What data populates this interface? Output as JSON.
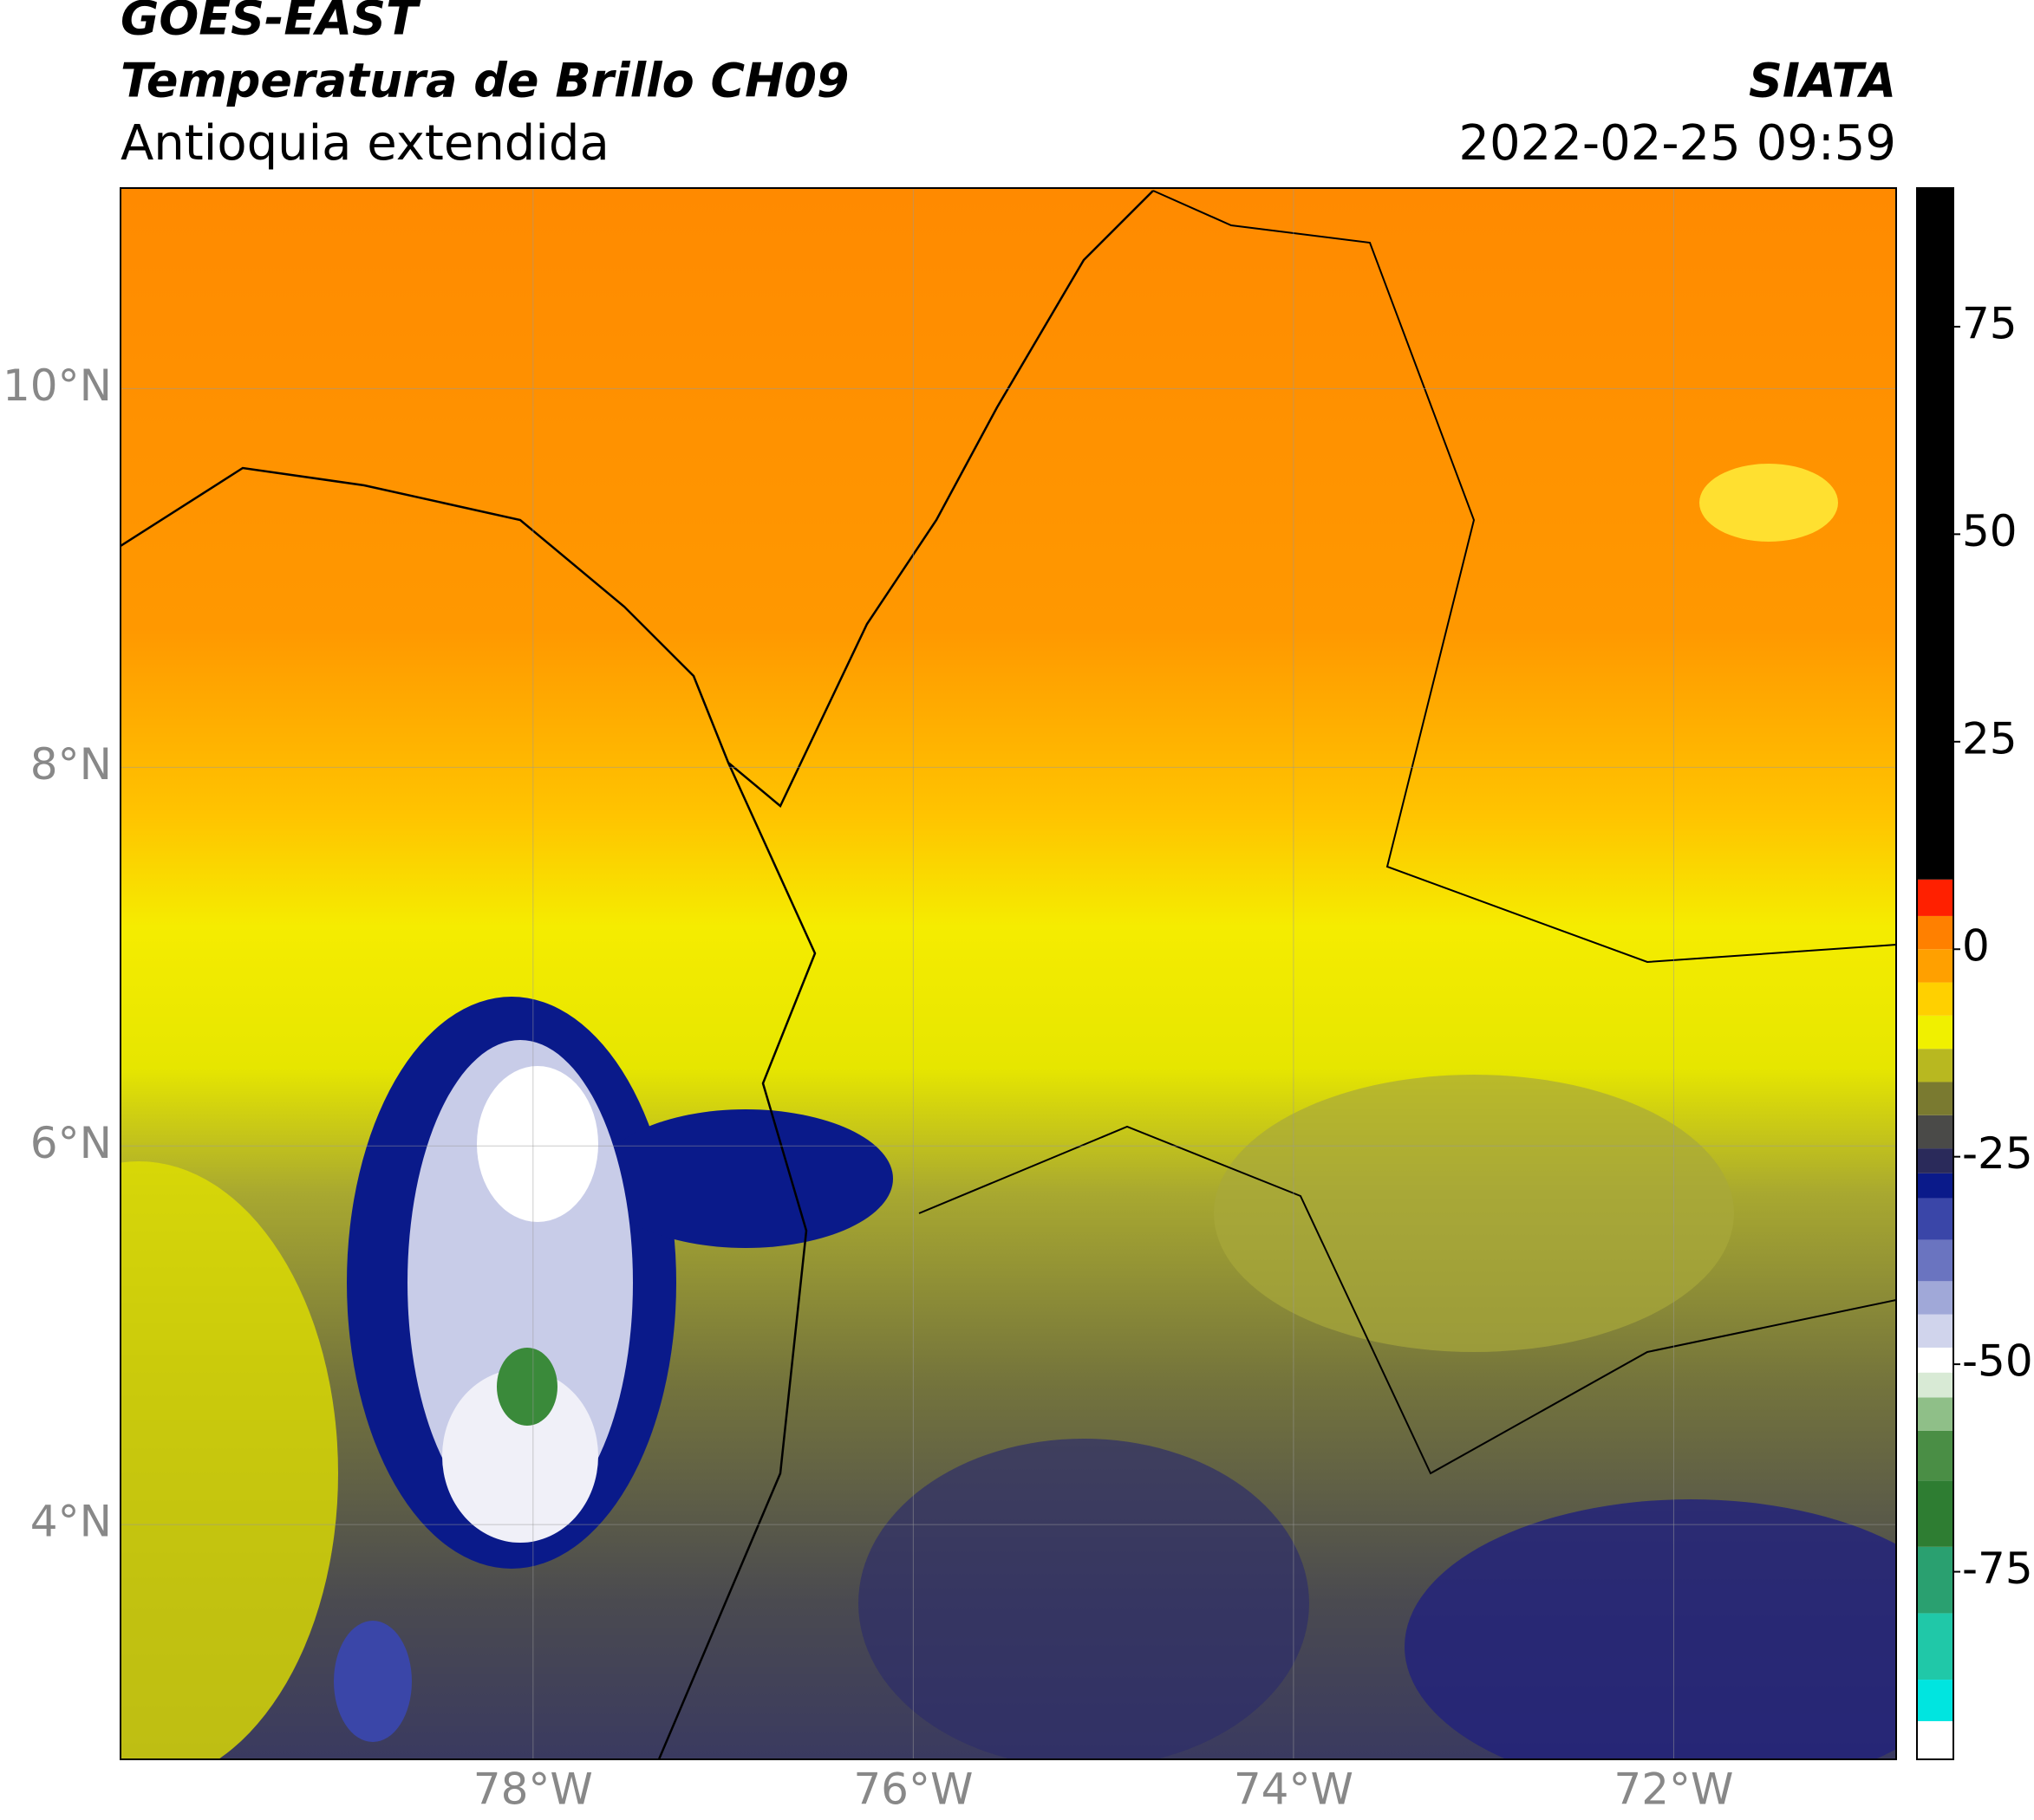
{
  "header": {
    "title": "GOES-EAST",
    "subtitle": "Temperatura de Brillo CH09",
    "region": "Antioquia extendida",
    "source": "SIATA",
    "datetime": "2022-02-25 09:59"
  },
  "map": {
    "xlim": [
      -80.17,
      -70.83
    ],
    "ylim": [
      2.76,
      11.06
    ],
    "grid": true,
    "xticks": [
      {
        "value": -78,
        "label": "78°W"
      },
      {
        "value": -76,
        "label": "76°W"
      },
      {
        "value": -74,
        "label": "74°W"
      },
      {
        "value": -72,
        "label": "72°W"
      }
    ],
    "yticks": [
      {
        "value": 4,
        "label": "4°N"
      },
      {
        "value": 6,
        "label": "6°N"
      },
      {
        "value": 8,
        "label": "8°N"
      },
      {
        "value": 10,
        "label": "10°N"
      }
    ]
  },
  "colorbar": {
    "range": [
      -97.6,
      91.7
    ],
    "ticks": [
      -75,
      -50,
      -25,
      0,
      25,
      50,
      75
    ],
    "levels": [
      -97.6,
      -93,
      -88,
      -80,
      -72,
      -64,
      -58,
      -54,
      -51,
      -48,
      -44,
      -40,
      -35,
      -30,
      -27,
      -24,
      -20,
      -16,
      -12,
      -8,
      -4,
      0,
      4,
      8.4,
      91.7
    ],
    "colors": [
      "#ffffff",
      "#00e5e0",
      "#20c8a8",
      "#2aa070",
      "#2e7d32",
      "#4a8e45",
      "#8fbf88",
      "#d8ead5",
      "#ffffff",
      "#d0d4ec",
      "#a0a8d8",
      "#6a74c0",
      "#3a46a8",
      "#0a1a8a",
      "#2a2a5a",
      "#4a4a48",
      "#7a7a30",
      "#b8b820",
      "#f0f000",
      "#ffd000",
      "#ffa000",
      "#ff8000",
      "#ff2000",
      "#000000"
    ]
  }
}
